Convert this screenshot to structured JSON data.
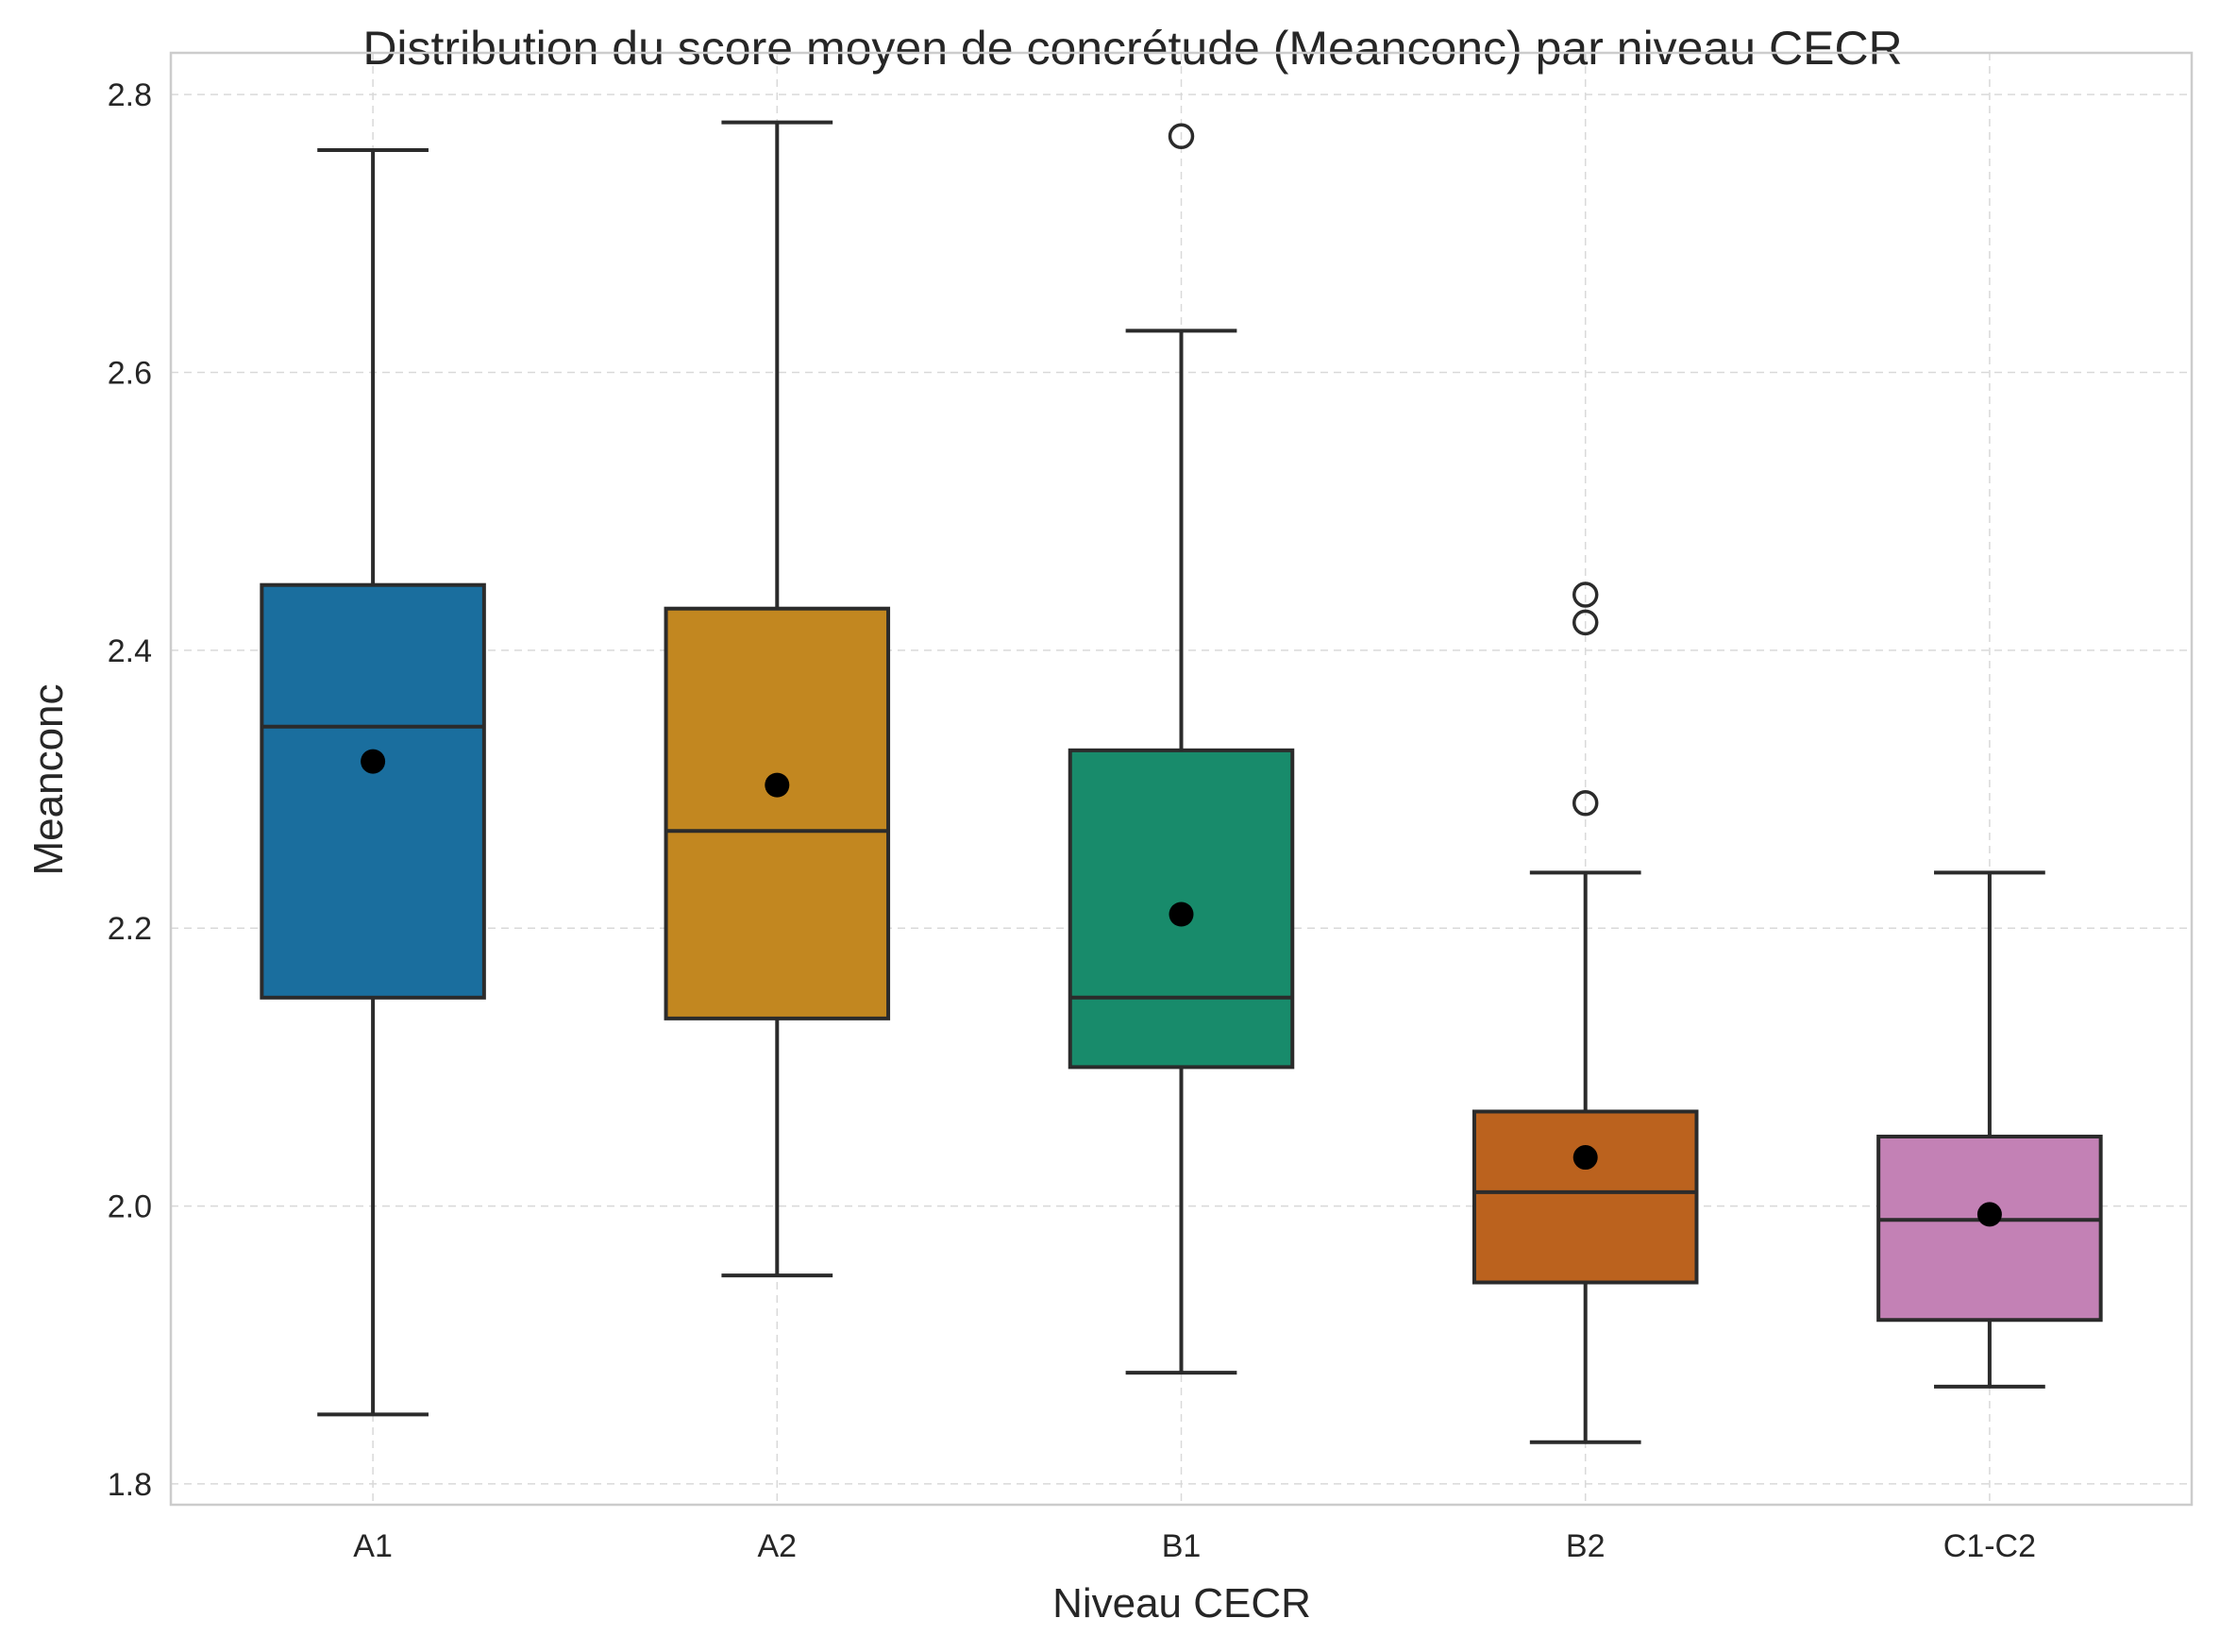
{
  "chart_data": {
    "type": "box",
    "title": "Distribution du score moyen de concrétude (Meanconc) par niveau CECR",
    "xlabel": "Niveau CECR",
    "ylabel": "Meanconc",
    "ylim": [
      1.785,
      2.83
    ],
    "yticks": [
      1.8,
      2.0,
      2.2,
      2.4,
      2.6,
      2.8
    ],
    "ytick_labels": [
      "1.8",
      "2.0",
      "2.2",
      "2.4",
      "2.6",
      "2.8"
    ],
    "grid": true,
    "categories": [
      "A1",
      "A2",
      "B1",
      "B2",
      "C1-C2"
    ],
    "boxes": [
      {
        "category": "A1",
        "color": "#1a6e9e",
        "whisker_low": 1.85,
        "q1": 2.15,
        "median": 2.345,
        "q3": 2.447,
        "whisker_high": 2.76,
        "mean": 2.32,
        "outliers": []
      },
      {
        "category": "A2",
        "color": "#c28720",
        "whisker_low": 1.95,
        "q1": 2.135,
        "median": 2.27,
        "q3": 2.43,
        "whisker_high": 2.78,
        "mean": 2.303,
        "outliers": []
      },
      {
        "category": "B1",
        "color": "#188b6b",
        "whisker_low": 1.88,
        "q1": 2.1,
        "median": 2.15,
        "q3": 2.328,
        "whisker_high": 2.63,
        "mean": 2.21,
        "outliers": [
          2.77
        ]
      },
      {
        "category": "B2",
        "color": "#bb621e",
        "whisker_low": 1.83,
        "q1": 1.945,
        "median": 2.01,
        "q3": 2.068,
        "whisker_high": 2.24,
        "mean": 2.035,
        "outliers": [
          2.29,
          2.42,
          2.44
        ]
      },
      {
        "category": "C1-C2",
        "color": "#c381b5",
        "whisker_low": 1.87,
        "q1": 1.918,
        "median": 1.99,
        "q3": 2.05,
        "whisker_high": 2.24,
        "mean": 1.994,
        "outliers": []
      }
    ]
  }
}
